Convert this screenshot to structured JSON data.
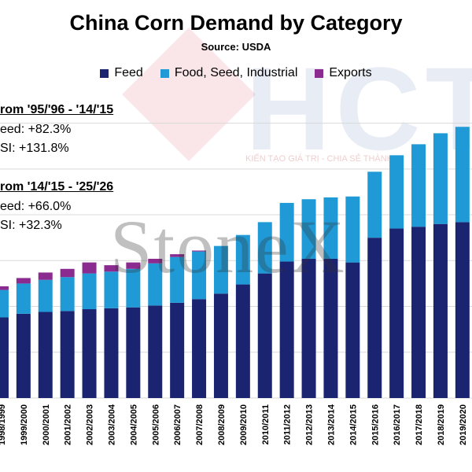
{
  "chart_data": {
    "type": "bar",
    "stacked": true,
    "title": "China Corn Demand by Category",
    "subtitle": "Source: USDA",
    "categories": [
      "1998/1999",
      "1999/2000",
      "2000/2001",
      "2001/2002",
      "2002/2003",
      "2003/2004",
      "2004/2005",
      "2005/2006",
      "2006/2007",
      "2007/2008",
      "2008/2009",
      "2009/2010",
      "2010/2011",
      "2011/2012",
      "2012/2013",
      "2013/2014",
      "2014/2015",
      "2015/2016",
      "2016/2017",
      "2017/2018",
      "2018/2019",
      "2019/2020"
    ],
    "series": [
      {
        "name": "Feed",
        "color": "#1b2470",
        "values": [
          88,
          92,
          94,
          95,
          97,
          98,
          99,
          101,
          104,
          108,
          114,
          124,
          136,
          149,
          152,
          152,
          148,
          175,
          185,
          187,
          190,
          192
        ]
      },
      {
        "name": "Food, Seed, Industrial",
        "color": "#1f9ad6",
        "values": [
          30,
          33,
          35,
          37,
          39,
          40,
          42,
          46,
          50,
          52,
          52,
          54,
          56,
          64,
          65,
          67,
          72,
          72,
          80,
          90,
          99,
          104
        ]
      },
      {
        "name": "Exports",
        "color": "#8b2a8f",
        "values": [
          4,
          6,
          8,
          9,
          12,
          7,
          7,
          5,
          3,
          1,
          0,
          0,
          0,
          0,
          0,
          0,
          0,
          0,
          0,
          0,
          0,
          0
        ]
      }
    ],
    "ylim": [
      0,
      340
    ],
    "xlabel": "",
    "ylabel": "",
    "grid": true,
    "legend_position": "top-center"
  },
  "annotations": {
    "block1": {
      "heading": "rom '95/'96 - '14/'15",
      "line1": "eed:  +82.3%",
      "line2": "SI:  +131.8%"
    },
    "block2": {
      "heading": "rom '14/'15 - '25/'26",
      "line1": "eed:  +66.0%",
      "line2": "SI:  +32.3%"
    }
  },
  "watermarks": {
    "logo": "HCT",
    "tagline": "KIẾN TẠO GIÁ TRỊ - CHIA SẺ THÀNH",
    "brand": "StoneX"
  },
  "colors": {
    "feed": "#1b2470",
    "fsi": "#1f9ad6",
    "exports": "#8b2a8f",
    "grid": "#d9d9d9"
  }
}
